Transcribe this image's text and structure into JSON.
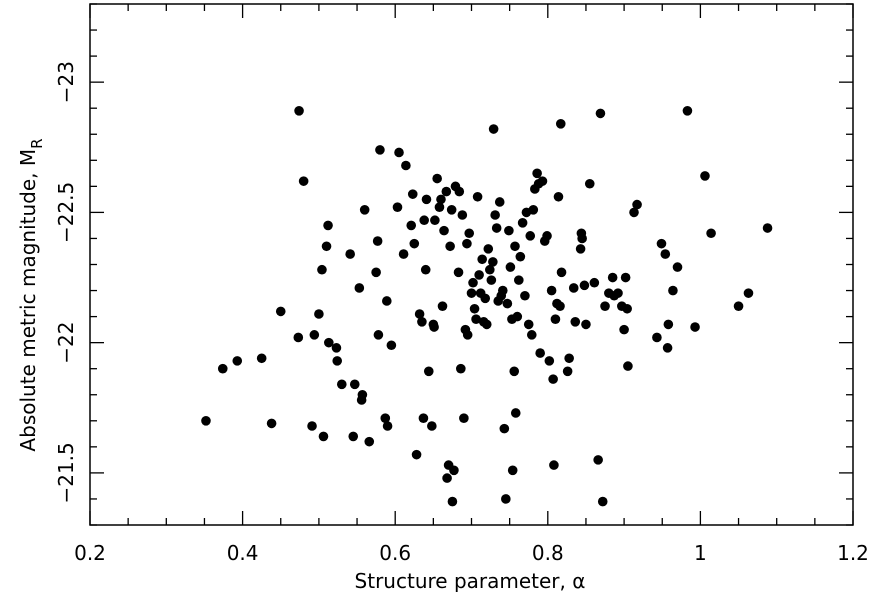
{
  "chart_data": {
    "type": "scatter",
    "xlabel": "Structure parameter, α",
    "ylabel": "Absolute metric magnitude, M",
    "ylabel_subscript": "R",
    "xlim": [
      0.2,
      1.2
    ],
    "ylim": [
      -21.3,
      -23.3
    ],
    "y_inverted": true,
    "grid": false,
    "x_ticks": [
      0.2,
      0.4,
      0.6,
      0.8,
      1.0,
      1.2
    ],
    "x_tick_labels": [
      "0.2",
      "0.4",
      "0.6",
      "0.8",
      "1",
      "1.2"
    ],
    "y_ticks": [
      -23.0,
      -22.5,
      -22.0,
      -21.5
    ],
    "y_tick_labels": [
      "−23",
      "−22.5",
      "−22",
      "−21.5"
    ],
    "x_minor_step": 0.05,
    "y_minor_step": 0.1,
    "point_color": "#000000",
    "points": [
      [
        0.474,
        -22.89
      ],
      [
        0.48,
        -22.62
      ],
      [
        0.352,
        -21.7
      ],
      [
        0.374,
        -21.9
      ],
      [
        0.393,
        -21.93
      ],
      [
        0.425,
        -21.94
      ],
      [
        0.438,
        -21.69
      ],
      [
        0.45,
        -22.12
      ],
      [
        0.473,
        -22.02
      ],
      [
        0.491,
        -21.68
      ],
      [
        0.494,
        -22.03
      ],
      [
        0.5,
        -22.11
      ],
      [
        0.504,
        -22.28
      ],
      [
        0.506,
        -21.64
      ],
      [
        0.51,
        -22.37
      ],
      [
        0.512,
        -22.45
      ],
      [
        0.513,
        -22.0
      ],
      [
        0.523,
        -21.98
      ],
      [
        0.524,
        -21.93
      ],
      [
        0.53,
        -21.84
      ],
      [
        0.541,
        -22.34
      ],
      [
        0.545,
        -21.64
      ],
      [
        0.547,
        -21.84
      ],
      [
        0.553,
        -22.21
      ],
      [
        0.556,
        -21.78
      ],
      [
        0.557,
        -21.8
      ],
      [
        0.56,
        -22.51
      ],
      [
        0.566,
        -21.62
      ],
      [
        0.575,
        -22.27
      ],
      [
        0.577,
        -22.39
      ],
      [
        0.578,
        -22.03
      ],
      [
        0.58,
        -22.74
      ],
      [
        0.587,
        -21.71
      ],
      [
        0.589,
        -22.16
      ],
      [
        0.59,
        -21.68
      ],
      [
        0.595,
        -21.99
      ],
      [
        0.603,
        -22.52
      ],
      [
        0.605,
        -22.73
      ],
      [
        0.611,
        -22.34
      ],
      [
        0.614,
        -22.68
      ],
      [
        0.621,
        -22.45
      ],
      [
        0.623,
        -22.57
      ],
      [
        0.625,
        -22.38
      ],
      [
        0.628,
        -21.57
      ],
      [
        0.632,
        -22.11
      ],
      [
        0.635,
        -22.08
      ],
      [
        0.637,
        -21.71
      ],
      [
        0.638,
        -22.47
      ],
      [
        0.64,
        -22.28
      ],
      [
        0.641,
        -22.55
      ],
      [
        0.644,
        -21.89
      ],
      [
        0.648,
        -21.68
      ],
      [
        0.65,
        -22.07
      ],
      [
        0.651,
        -22.06
      ],
      [
        0.652,
        -22.47
      ],
      [
        0.655,
        -22.63
      ],
      [
        0.658,
        -22.52
      ],
      [
        0.66,
        -22.55
      ],
      [
        0.662,
        -22.14
      ],
      [
        0.664,
        -22.43
      ],
      [
        0.667,
        -22.58
      ],
      [
        0.668,
        -21.48
      ],
      [
        0.67,
        -21.53
      ],
      [
        0.672,
        -22.37
      ],
      [
        0.674,
        -22.51
      ],
      [
        0.675,
        -21.39
      ],
      [
        0.677,
        -21.51
      ],
      [
        0.679,
        -22.6
      ],
      [
        0.683,
        -22.27
      ],
      [
        0.684,
        -22.58
      ],
      [
        0.686,
        -21.9
      ],
      [
        0.688,
        -22.49
      ],
      [
        0.69,
        -21.71
      ],
      [
        0.692,
        -22.05
      ],
      [
        0.694,
        -22.38
      ],
      [
        0.695,
        -22.03
      ],
      [
        0.697,
        -22.42
      ],
      [
        0.7,
        -22.19
      ],
      [
        0.702,
        -22.23
      ],
      [
        0.704,
        -22.13
      ],
      [
        0.706,
        -22.09
      ],
      [
        0.708,
        -22.56
      ],
      [
        0.71,
        -22.26
      ],
      [
        0.712,
        -22.19
      ],
      [
        0.714,
        -22.32
      ],
      [
        0.716,
        -22.08
      ],
      [
        0.718,
        -22.17
      ],
      [
        0.72,
        -22.07
      ],
      [
        0.722,
        -22.36
      ],
      [
        0.724,
        -22.28
      ],
      [
        0.726,
        -22.24
      ],
      [
        0.728,
        -22.31
      ],
      [
        0.729,
        -22.82
      ],
      [
        0.731,
        -22.49
      ],
      [
        0.733,
        -22.44
      ],
      [
        0.735,
        -22.16
      ],
      [
        0.737,
        -22.54
      ],
      [
        0.739,
        -22.18
      ],
      [
        0.741,
        -22.2
      ],
      [
        0.743,
        -21.67
      ],
      [
        0.745,
        -21.4
      ],
      [
        0.747,
        -22.15
      ],
      [
        0.749,
        -22.43
      ],
      [
        0.751,
        -22.29
      ],
      [
        0.753,
        -22.09
      ],
      [
        0.754,
        -21.51
      ],
      [
        0.756,
        -21.89
      ],
      [
        0.757,
        -22.37
      ],
      [
        0.758,
        -21.73
      ],
      [
        0.76,
        -22.1
      ],
      [
        0.762,
        -22.24
      ],
      [
        0.764,
        -22.33
      ],
      [
        0.767,
        -22.46
      ],
      [
        0.77,
        -22.18
      ],
      [
        0.772,
        -22.5
      ],
      [
        0.775,
        -22.07
      ],
      [
        0.777,
        -22.41
      ],
      [
        0.779,
        -22.03
      ],
      [
        0.781,
        -22.51
      ],
      [
        0.783,
        -22.59
      ],
      [
        0.786,
        -22.65
      ],
      [
        0.788,
        -22.61
      ],
      [
        0.79,
        -21.96
      ],
      [
        0.793,
        -22.62
      ],
      [
        0.796,
        -22.39
      ],
      [
        0.799,
        -22.41
      ],
      [
        0.802,
        -21.93
      ],
      [
        0.805,
        -22.2
      ],
      [
        0.807,
        -21.86
      ],
      [
        0.808,
        -21.53
      ],
      [
        0.81,
        -22.09
      ],
      [
        0.812,
        -22.15
      ],
      [
        0.814,
        -22.56
      ],
      [
        0.816,
        -22.14
      ],
      [
        0.817,
        -22.84
      ],
      [
        0.818,
        -22.27
      ],
      [
        0.826,
        -21.89
      ],
      [
        0.828,
        -21.94
      ],
      [
        0.834,
        -22.21
      ],
      [
        0.836,
        -22.08
      ],
      [
        0.843,
        -22.36
      ],
      [
        0.844,
        -22.42
      ],
      [
        0.845,
        -22.4
      ],
      [
        0.848,
        -22.22
      ],
      [
        0.85,
        -22.07
      ],
      [
        0.855,
        -22.61
      ],
      [
        0.861,
        -22.23
      ],
      [
        0.866,
        -21.55
      ],
      [
        0.869,
        -22.88
      ],
      [
        0.872,
        -21.39
      ],
      [
        0.875,
        -22.14
      ],
      [
        0.88,
        -22.19
      ],
      [
        0.885,
        -22.25
      ],
      [
        0.887,
        -22.18
      ],
      [
        0.892,
        -22.19
      ],
      [
        0.897,
        -22.14
      ],
      [
        0.9,
        -22.05
      ],
      [
        0.902,
        -22.25
      ],
      [
        0.904,
        -22.13
      ],
      [
        0.905,
        -21.91
      ],
      [
        0.913,
        -22.5
      ],
      [
        0.917,
        -22.53
      ],
      [
        0.943,
        -22.02
      ],
      [
        0.949,
        -22.38
      ],
      [
        0.954,
        -22.34
      ],
      [
        0.957,
        -21.98
      ],
      [
        0.958,
        -22.07
      ],
      [
        0.964,
        -22.2
      ],
      [
        0.97,
        -22.29
      ],
      [
        0.983,
        -22.89
      ],
      [
        0.993,
        -22.06
      ],
      [
        1.006,
        -22.64
      ],
      [
        1.014,
        -22.42
      ],
      [
        1.05,
        -22.14
      ],
      [
        1.063,
        -22.19
      ],
      [
        1.088,
        -22.44
      ]
    ]
  }
}
